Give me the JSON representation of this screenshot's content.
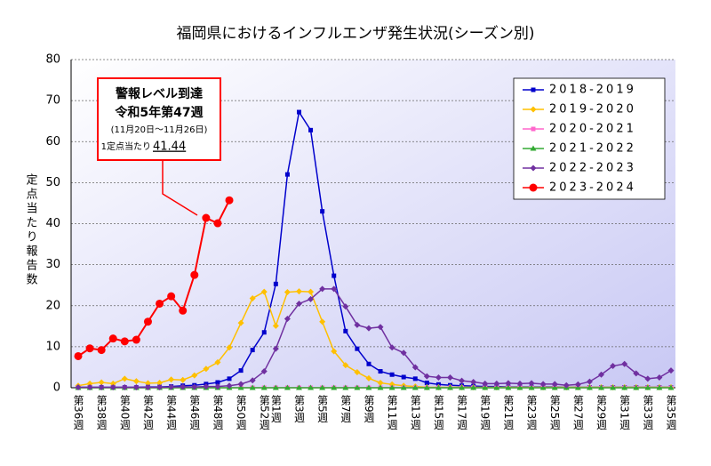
{
  "chart_data": {
    "type": "line",
    "title": "福岡県におけるインフルエンザ発生状況(シーズン別)",
    "y_label": "定点当たり報告数",
    "categories": [
      "第36週",
      null,
      "第38週",
      null,
      "第40週",
      null,
      "第42週",
      null,
      "第44週",
      null,
      "第46週",
      null,
      "第48週",
      null,
      "第50週",
      null,
      "第52週",
      "第1週",
      null,
      "第3週",
      null,
      "第5週",
      null,
      "第7週",
      null,
      "第9週",
      null,
      "第11週",
      null,
      "第13週",
      null,
      "第15週",
      null,
      "第17週",
      null,
      "第19週",
      null,
      "第21週",
      null,
      "第23週",
      null,
      "第25週",
      null,
      "第27週",
      null,
      "第29週",
      null,
      "第31週",
      null,
      "第33週",
      null,
      "第35週"
    ],
    "ylim": [
      0,
      80
    ],
    "yticks": [
      0,
      10,
      20,
      30,
      40,
      50,
      60,
      70,
      80
    ],
    "grid": true,
    "legend": "upper right",
    "series": [
      {
        "name": "2018-2019",
        "color": "#0000cc",
        "marker": "square",
        "values": [
          0.1,
          0.1,
          0.1,
          0.1,
          0.1,
          0.1,
          0.2,
          0.2,
          0.3,
          0.5,
          0.6,
          0.9,
          1.3,
          2.2,
          4.2,
          9.2,
          13.5,
          25.3,
          52.0,
          67.2,
          62.8,
          43.0,
          27.3,
          13.8,
          9.5,
          5.8,
          4.0,
          3.2,
          2.6,
          2.2,
          1.2,
          0.8,
          0.6,
          0.5,
          0.4,
          0.3,
          0.3,
          0.2,
          0.2,
          0.2,
          0.2,
          0.2,
          0.1,
          0.1,
          0.1,
          0.1,
          0.1,
          0.1,
          0.1,
          0.1,
          0.1,
          0.1
        ]
      },
      {
        "name": "2019-2020",
        "color": "#ffc000",
        "marker": "diamond",
        "values": [
          0.5,
          1.0,
          1.3,
          1.0,
          2.2,
          1.6,
          1.1,
          1.2,
          2.0,
          1.9,
          3.0,
          4.6,
          6.2,
          9.8,
          15.8,
          21.8,
          23.4,
          15.1,
          23.3,
          23.5,
          23.4,
          16.1,
          8.9,
          5.5,
          3.8,
          2.3,
          1.2,
          0.8,
          0.5,
          0.3,
          0.1,
          0.1,
          0.1,
          0.1,
          0.1,
          0.1,
          0.1,
          0.1,
          0.1,
          0.1,
          0.1,
          0.1,
          0.1,
          0.1,
          0.1,
          0.1,
          0.1,
          0.1,
          0.1,
          0.1,
          0.1,
          0.1
        ]
      },
      {
        "name": "2020-2021",
        "color": "#ff66cc",
        "marker": "square",
        "values": [
          0,
          0,
          0,
          0,
          0,
          0,
          0,
          0,
          0,
          0,
          0,
          0,
          0,
          0,
          0,
          0,
          0,
          0,
          0,
          0,
          0,
          0,
          0,
          0,
          0,
          0,
          0,
          0,
          0,
          0,
          0,
          0,
          0,
          0,
          0,
          0,
          0,
          0,
          0,
          0,
          0,
          0,
          0,
          0,
          0,
          0,
          0,
          0,
          0,
          0,
          0,
          0
        ]
      },
      {
        "name": "2021-2022",
        "color": "#33aa33",
        "marker": "triangle",
        "values": [
          0,
          0,
          0,
          0,
          0,
          0,
          0,
          0,
          0,
          0,
          0,
          0,
          0,
          0,
          0,
          0,
          0,
          0,
          0,
          0,
          0,
          0,
          0,
          0,
          0,
          0,
          0,
          0,
          0,
          0,
          0,
          0,
          0,
          0,
          0,
          0,
          0,
          0,
          0,
          0,
          0,
          0,
          0,
          0,
          0,
          0,
          0,
          0,
          0,
          0,
          0,
          0
        ]
      },
      {
        "name": "2022-2023",
        "color": "#7030a0",
        "marker": "diamond",
        "values": [
          0.1,
          0.1,
          0.1,
          0.1,
          0.1,
          0.1,
          0.1,
          0.1,
          0.2,
          0.2,
          0.2,
          0.3,
          0.3,
          0.5,
          0.9,
          1.8,
          4.0,
          9.5,
          16.8,
          20.5,
          21.6,
          24.1,
          24.1,
          19.8,
          15.3,
          14.5,
          14.8,
          9.8,
          8.5,
          5.0,
          2.8,
          2.5,
          2.5,
          1.7,
          1.4,
          1.0,
          1.0,
          1.1,
          1.0,
          1.1,
          0.9,
          0.9,
          0.6,
          0.8,
          1.5,
          3.2,
          5.3,
          5.8,
          3.5,
          2.2,
          2.5,
          4.2
        ]
      },
      {
        "name": "2023-2024",
        "color": "#ff0000",
        "marker": "circle",
        "values": [
          7.7,
          9.6,
          9.2,
          12.0,
          11.3,
          11.7,
          16.1,
          20.5,
          22.3,
          18.8,
          27.5,
          41.4,
          40.1,
          45.7,
          null,
          null,
          null,
          null,
          null,
          null,
          null,
          null,
          null,
          null,
          null,
          null,
          null,
          null,
          null,
          null,
          null,
          null,
          null,
          null,
          null,
          null,
          null,
          null,
          null,
          null,
          null,
          null,
          null,
          null,
          null,
          null,
          null,
          null,
          null,
          null,
          null,
          null
        ]
      }
    ],
    "annotation": {
      "lines": [
        "警報レベル到達",
        "令和5年第47週",
        "(11月20日～11月26日)"
      ],
      "prefix": "1定点当たり",
      "value_label": "41.44",
      "value": 41.44
    }
  }
}
